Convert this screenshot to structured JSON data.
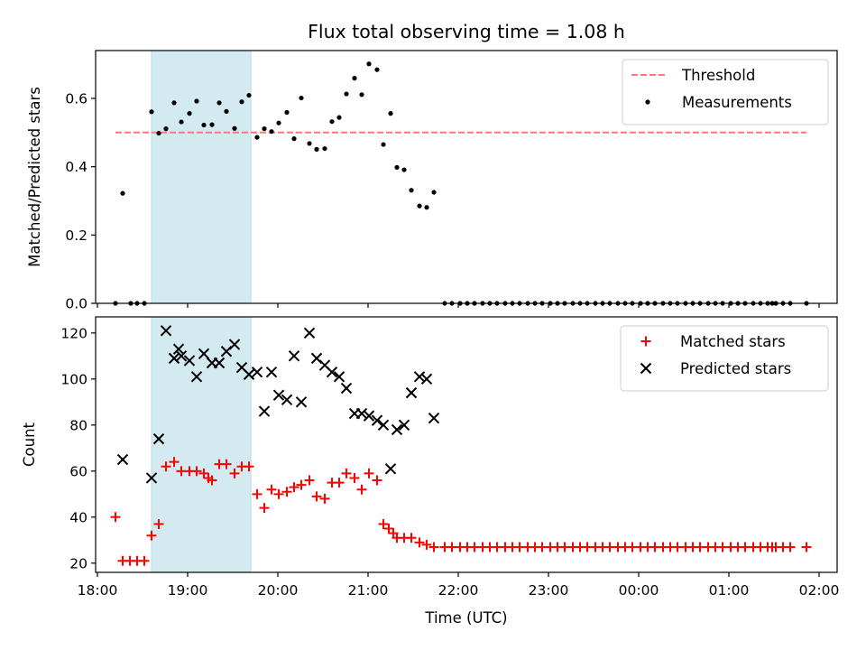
{
  "figure": {
    "title": "Flux total observing time = 1.08 h",
    "xlabel": "Time (UTC)",
    "shade_range": [
      18.6,
      19.7
    ],
    "shade_color": "#d4eaf1",
    "xlim": [
      17.98,
      26.2
    ],
    "xticks": [
      18,
      19,
      20,
      21,
      22,
      23,
      24,
      25,
      26
    ],
    "xtick_labels": [
      "18:00",
      "19:00",
      "20:00",
      "21:00",
      "22:00",
      "23:00",
      "00:00",
      "01:00",
      "02:00"
    ]
  },
  "chart_data": [
    {
      "type": "scatter",
      "ylabel": "Matched/Predicted stars",
      "ylim": [
        0,
        0.74
      ],
      "yticks": [
        0.0,
        0.2,
        0.4,
        0.6
      ],
      "ytick_labels": [
        "0.0",
        "0.2",
        "0.4",
        "0.6"
      ],
      "legend_position": "upper-right",
      "threshold": {
        "name": "Threshold",
        "value": 0.5,
        "x_range": [
          18.2,
          25.86
        ],
        "color": "#ff7777"
      },
      "series": [
        {
          "name": "Measurements",
          "marker": "dot",
          "color": "#000000",
          "points": [
            [
              18.2,
              0.0
            ],
            [
              18.28,
              0.322
            ],
            [
              18.37,
              0.0
            ],
            [
              18.44,
              0.0
            ],
            [
              18.52,
              0.0
            ],
            [
              18.6,
              0.561
            ],
            [
              18.68,
              0.498
            ],
            [
              18.76,
              0.511
            ],
            [
              18.85,
              0.587
            ],
            [
              18.93,
              0.531
            ],
            [
              19.02,
              0.556
            ],
            [
              19.1,
              0.592
            ],
            [
              19.18,
              0.522
            ],
            [
              19.27,
              0.523
            ],
            [
              19.35,
              0.587
            ],
            [
              19.43,
              0.562
            ],
            [
              19.52,
              0.512
            ],
            [
              19.6,
              0.59
            ],
            [
              19.68,
              0.609
            ],
            [
              19.77,
              0.486
            ],
            [
              19.85,
              0.511
            ],
            [
              19.93,
              0.503
            ],
            [
              20.01,
              0.528
            ],
            [
              20.1,
              0.559
            ],
            [
              20.18,
              0.482
            ],
            [
              20.26,
              0.601
            ],
            [
              20.35,
              0.468
            ],
            [
              20.43,
              0.451
            ],
            [
              20.52,
              0.453
            ],
            [
              20.6,
              0.532
            ],
            [
              20.68,
              0.544
            ],
            [
              20.76,
              0.613
            ],
            [
              20.85,
              0.659
            ],
            [
              20.93,
              0.611
            ],
            [
              21.01,
              0.701
            ],
            [
              21.1,
              0.684
            ],
            [
              21.17,
              0.465
            ],
            [
              21.25,
              0.556
            ],
            [
              21.32,
              0.398
            ],
            [
              21.4,
              0.391
            ],
            [
              21.48,
              0.331
            ],
            [
              21.57,
              0.285
            ],
            [
              21.65,
              0.281
            ],
            [
              21.73,
              0.325
            ],
            [
              21.85,
              0.0
            ],
            [
              21.93,
              0.0
            ],
            [
              22.02,
              0.0
            ],
            [
              22.1,
              0.0
            ],
            [
              22.18,
              0.0
            ],
            [
              22.27,
              0.0
            ],
            [
              22.35,
              0.0
            ],
            [
              22.43,
              0.0
            ],
            [
              22.52,
              0.0
            ],
            [
              22.6,
              0.0
            ],
            [
              22.68,
              0.0
            ],
            [
              22.77,
              0.0
            ],
            [
              22.85,
              0.0
            ],
            [
              22.93,
              0.0
            ],
            [
              23.02,
              0.0
            ],
            [
              23.1,
              0.0
            ],
            [
              23.18,
              0.0
            ],
            [
              23.27,
              0.0
            ],
            [
              23.35,
              0.0
            ],
            [
              23.43,
              0.0
            ],
            [
              23.52,
              0.0
            ],
            [
              23.6,
              0.0
            ],
            [
              23.68,
              0.0
            ],
            [
              23.77,
              0.0
            ],
            [
              23.85,
              0.0
            ],
            [
              23.93,
              0.0
            ],
            [
              24.02,
              0.0
            ],
            [
              24.1,
              0.0
            ],
            [
              24.18,
              0.0
            ],
            [
              24.27,
              0.0
            ],
            [
              24.35,
              0.0
            ],
            [
              24.43,
              0.0
            ],
            [
              24.52,
              0.0
            ],
            [
              24.6,
              0.0
            ],
            [
              24.68,
              0.0
            ],
            [
              24.77,
              0.0
            ],
            [
              24.85,
              0.0
            ],
            [
              24.93,
              0.0
            ],
            [
              25.02,
              0.0
            ],
            [
              25.1,
              0.0
            ],
            [
              25.18,
              0.0
            ],
            [
              25.27,
              0.0
            ],
            [
              25.35,
              0.0
            ],
            [
              25.43,
              0.0
            ],
            [
              25.48,
              0.0
            ],
            [
              25.52,
              0.0
            ],
            [
              25.6,
              0.0
            ],
            [
              25.68,
              0.0
            ],
            [
              25.86,
              0.0
            ]
          ]
        }
      ]
    },
    {
      "type": "scatter",
      "ylabel": "Count",
      "ylim": [
        16,
        127
      ],
      "yticks": [
        20,
        40,
        60,
        80,
        100,
        120
      ],
      "ytick_labels": [
        "20",
        "40",
        "60",
        "80",
        "100",
        "120"
      ],
      "legend_position": "upper-right",
      "series": [
        {
          "name": "Matched stars",
          "marker": "plus",
          "color": "#ff0000",
          "points": [
            [
              18.2,
              40
            ],
            [
              18.28,
              21
            ],
            [
              18.36,
              21
            ],
            [
              18.44,
              21
            ],
            [
              18.52,
              21
            ],
            [
              18.6,
              32
            ],
            [
              18.68,
              37
            ],
            [
              18.76,
              62
            ],
            [
              18.85,
              64
            ],
            [
              18.93,
              60
            ],
            [
              19.02,
              60
            ],
            [
              19.1,
              60
            ],
            [
              19.18,
              59
            ],
            [
              19.23,
              57
            ],
            [
              19.27,
              56
            ],
            [
              19.35,
              63
            ],
            [
              19.43,
              63
            ],
            [
              19.52,
              59
            ],
            [
              19.6,
              62
            ],
            [
              19.68,
              62
            ],
            [
              19.77,
              50
            ],
            [
              19.85,
              44
            ],
            [
              19.93,
              52
            ],
            [
              20.01,
              50
            ],
            [
              20.1,
              51
            ],
            [
              20.18,
              53
            ],
            [
              20.26,
              54
            ],
            [
              20.35,
              56
            ],
            [
              20.43,
              49
            ],
            [
              20.52,
              48
            ],
            [
              20.6,
              55
            ],
            [
              20.68,
              55
            ],
            [
              20.76,
              59
            ],
            [
              20.85,
              57
            ],
            [
              20.93,
              52
            ],
            [
              21.01,
              59
            ],
            [
              21.1,
              56
            ],
            [
              21.17,
              37
            ],
            [
              21.23,
              35
            ],
            [
              21.28,
              33
            ],
            [
              21.32,
              31
            ],
            [
              21.4,
              31
            ],
            [
              21.48,
              31
            ],
            [
              21.57,
              29
            ],
            [
              21.65,
              28
            ],
            [
              21.73,
              27
            ],
            [
              21.85,
              27
            ],
            [
              21.93,
              27
            ],
            [
              22.02,
              27
            ],
            [
              22.1,
              27
            ],
            [
              22.18,
              27
            ],
            [
              22.27,
              27
            ],
            [
              22.35,
              27
            ],
            [
              22.43,
              27
            ],
            [
              22.52,
              27
            ],
            [
              22.6,
              27
            ],
            [
              22.68,
              27
            ],
            [
              22.77,
              27
            ],
            [
              22.85,
              27
            ],
            [
              22.93,
              27
            ],
            [
              23.02,
              27
            ],
            [
              23.1,
              27
            ],
            [
              23.18,
              27
            ],
            [
              23.27,
              27
            ],
            [
              23.35,
              27
            ],
            [
              23.43,
              27
            ],
            [
              23.52,
              27
            ],
            [
              23.6,
              27
            ],
            [
              23.68,
              27
            ],
            [
              23.77,
              27
            ],
            [
              23.85,
              27
            ],
            [
              23.93,
              27
            ],
            [
              24.02,
              27
            ],
            [
              24.1,
              27
            ],
            [
              24.18,
              27
            ],
            [
              24.27,
              27
            ],
            [
              24.35,
              27
            ],
            [
              24.43,
              27
            ],
            [
              24.52,
              27
            ],
            [
              24.6,
              27
            ],
            [
              24.68,
              27
            ],
            [
              24.77,
              27
            ],
            [
              24.85,
              27
            ],
            [
              24.93,
              27
            ],
            [
              25.02,
              27
            ],
            [
              25.1,
              27
            ],
            [
              25.18,
              27
            ],
            [
              25.27,
              27
            ],
            [
              25.35,
              27
            ],
            [
              25.43,
              27
            ],
            [
              25.48,
              27
            ],
            [
              25.52,
              27
            ],
            [
              25.6,
              27
            ],
            [
              25.68,
              27
            ],
            [
              25.86,
              27
            ]
          ]
        },
        {
          "name": "Predicted stars",
          "marker": "x",
          "color": "#000000",
          "points": [
            [
              18.28,
              65
            ],
            [
              18.6,
              57
            ],
            [
              18.68,
              74
            ],
            [
              18.76,
              121
            ],
            [
              18.85,
              109
            ],
            [
              18.9,
              113
            ],
            [
              18.93,
              110
            ],
            [
              19.02,
              108
            ],
            [
              19.1,
              101
            ],
            [
              19.18,
              111
            ],
            [
              19.27,
              107
            ],
            [
              19.35,
              107
            ],
            [
              19.43,
              112
            ],
            [
              19.52,
              115
            ],
            [
              19.6,
              105
            ],
            [
              19.68,
              102
            ],
            [
              19.77,
              103
            ],
            [
              19.85,
              86
            ],
            [
              19.93,
              103
            ],
            [
              20.01,
              93
            ],
            [
              20.1,
              91
            ],
            [
              20.18,
              110
            ],
            [
              20.26,
              90
            ],
            [
              20.35,
              120
            ],
            [
              20.43,
              109
            ],
            [
              20.52,
              106
            ],
            [
              20.6,
              103
            ],
            [
              20.68,
              101
            ],
            [
              20.76,
              96
            ],
            [
              20.85,
              85
            ],
            [
              20.93,
              85
            ],
            [
              21.01,
              84
            ],
            [
              21.1,
              82
            ],
            [
              21.17,
              80
            ],
            [
              21.25,
              61
            ],
            [
              21.32,
              78
            ],
            [
              21.4,
              80
            ],
            [
              21.48,
              94
            ],
            [
              21.57,
              101
            ],
            [
              21.65,
              100
            ],
            [
              21.73,
              83
            ]
          ]
        }
      ]
    }
  ]
}
